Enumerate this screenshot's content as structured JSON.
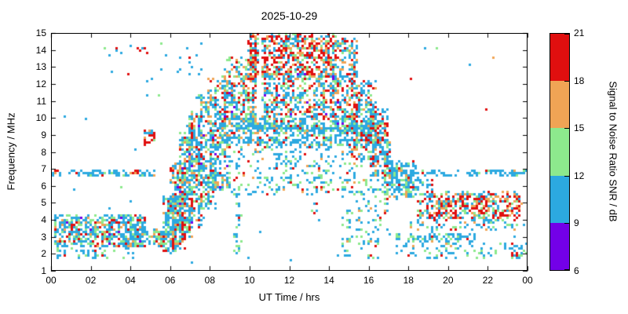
{
  "chart_data": {
    "type": "scatter",
    "title": "2025-10-29",
    "xlabel": "UT Time / hrs",
    "ylabel": "Frequency / MHz",
    "xlim": [
      0,
      24
    ],
    "ylim": [
      1,
      15
    ],
    "grid": false,
    "x_ticks": {
      "values": [
        0,
        2,
        4,
        6,
        8,
        10,
        12,
        14,
        16,
        18,
        20,
        22,
        24
      ],
      "labels": [
        "00",
        "02",
        "04",
        "06",
        "08",
        "10",
        "12",
        "14",
        "16",
        "18",
        "20",
        "22",
        "00"
      ]
    },
    "y_ticks": {
      "values": [
        1,
        2,
        3,
        4,
        5,
        6,
        7,
        8,
        9,
        10,
        11,
        12,
        13,
        14,
        15
      ],
      "labels": [
        "1",
        "2",
        "3",
        "4",
        "5",
        "6",
        "7",
        "8",
        "9",
        "10",
        "11",
        "12",
        "13",
        "14",
        "15"
      ]
    },
    "colorbar": {
      "label": "Signal to Noise Ratio SNR / dB",
      "range": [
        6,
        21
      ],
      "ticks": [
        6,
        9,
        12,
        15,
        18,
        21
      ],
      "colors": [
        "#7300E8",
        "#2CA9E0",
        "#8DE98D",
        "#F0A455",
        "#E00F0F"
      ]
    },
    "point_colors": {
      "purple": "#7300E8",
      "blue": "#2CA9E0",
      "green": "#8DE98D",
      "orange": "#F0A455",
      "red": "#E00F0F"
    },
    "clusters": [
      {
        "t": [
          0.1,
          4.7
        ],
        "f": [
          2.45,
          4.35
        ],
        "n": 520,
        "colors": {
          "blue": 52,
          "green": 26,
          "orange": 10,
          "red": 9,
          "purple": 3
        }
      },
      {
        "t": [
          0.1,
          4.2
        ],
        "f": [
          1.75,
          2.35
        ],
        "n": 45,
        "colors": {
          "blue": 70,
          "green": 20,
          "orange": 5,
          "red": 5
        }
      },
      {
        "t": [
          3.4,
          5.9
        ],
        "f": [
          2.55,
          3.45
        ],
        "n": 150,
        "colors": {
          "blue": 60,
          "green": 28,
          "orange": 6,
          "red": 6
        }
      },
      {
        "t": [
          0.0,
          5.2
        ],
        "f": [
          6.7,
          6.95
        ],
        "n": 80,
        "colors": {
          "blue": 88,
          "green": 6,
          "orange": 3,
          "red": 3
        }
      },
      {
        "t": [
          0.05,
          0.35
        ],
        "f": [
          6.8,
          7.0
        ],
        "n": 4,
        "colors": {
          "red": 60,
          "orange": 40
        }
      },
      {
        "t": [
          4.0,
          4.35
        ],
        "f": [
          6.75,
          7.0
        ],
        "n": 8,
        "colors": {
          "red": 70,
          "orange": 30
        }
      },
      {
        "t": [
          4.65,
          5.15
        ],
        "f": [
          8.5,
          9.35
        ],
        "n": 30,
        "colors": {
          "red": 55,
          "orange": 20,
          "blue": 15,
          "green": 10
        }
      },
      {
        "t": [
          4.3,
          4.75
        ],
        "f": [
          13.8,
          14.35
        ],
        "n": 6,
        "colors": {
          "red": 60,
          "blue": 40
        }
      },
      {
        "t": [
          5.2,
          7.7
        ],
        "f": [
          11.9,
          14.6
        ],
        "n": 14,
        "colors": {
          "blue": 75,
          "green": 15,
          "red": 10
        }
      },
      {
        "t": [
          2.5,
          4.2
        ],
        "f": [
          12.1,
          14.4
        ],
        "n": 7,
        "colors": {
          "blue": 70,
          "red": 30
        }
      },
      {
        "t": [
          5.6,
          6.3
        ],
        "f": [
          2.2,
          5.4
        ],
        "n": 170,
        "colors": {
          "blue": 45,
          "green": 20,
          "orange": 13,
          "red": 20,
          "purple": 2
        }
      },
      {
        "t": [
          6.0,
          6.65
        ],
        "f": [
          2.4,
          7.4
        ],
        "n": 230,
        "colors": {
          "blue": 45,
          "green": 20,
          "orange": 13,
          "red": 20,
          "purple": 2
        }
      },
      {
        "t": [
          6.4,
          7.1
        ],
        "f": [
          2.8,
          9.2
        ],
        "n": 260,
        "colors": {
          "blue": 46,
          "green": 20,
          "orange": 14,
          "red": 18,
          "purple": 2
        }
      },
      {
        "t": [
          6.85,
          7.6
        ],
        "f": [
          3.6,
          10.4
        ],
        "n": 240,
        "colors": {
          "blue": 48,
          "green": 22,
          "orange": 12,
          "red": 16,
          "purple": 2
        }
      },
      {
        "t": [
          7.3,
          8.25
        ],
        "f": [
          4.6,
          11.4
        ],
        "n": 230,
        "colors": {
          "blue": 50,
          "green": 22,
          "orange": 12,
          "red": 14,
          "purple": 2
        }
      },
      {
        "t": [
          7.9,
          8.9
        ],
        "f": [
          5.8,
          12.4
        ],
        "n": 210,
        "colors": {
          "blue": 50,
          "green": 22,
          "orange": 12,
          "red": 14,
          "purple": 2
        }
      },
      {
        "t": [
          8.6,
          10.3
        ],
        "f": [
          9.6,
          13.6
        ],
        "n": 330,
        "colors": {
          "blue": 42,
          "green": 20,
          "orange": 14,
          "red": 22,
          "purple": 2
        }
      },
      {
        "t": [
          9.9,
          10.33
        ],
        "f": [
          12.3,
          15.0
        ],
        "n": 120,
        "colors": {
          "red": 45,
          "orange": 18,
          "blue": 22,
          "green": 15
        }
      },
      {
        "t": [
          10.55,
          14.3
        ],
        "f": [
          12.4,
          15.0
        ],
        "n": 560,
        "colors": {
          "red": 46,
          "orange": 17,
          "blue": 21,
          "green": 16
        }
      },
      {
        "t": [
          10.55,
          14.4
        ],
        "f": [
          10.0,
          12.7
        ],
        "n": 420,
        "colors": {
          "blue": 44,
          "green": 20,
          "orange": 14,
          "red": 20,
          "purple": 2
        }
      },
      {
        "t": [
          8.3,
          16.4
        ],
        "f": [
          8.35,
          10.15
        ],
        "n": 620,
        "colors": {
          "blue": 62,
          "green": 20,
          "orange": 9,
          "red": 9
        }
      },
      {
        "t": [
          9.0,
          16.2
        ],
        "f": [
          9.35,
          9.6
        ],
        "n": 120,
        "colors": {
          "blue": 85,
          "green": 10,
          "orange": 3,
          "red": 2
        }
      },
      {
        "t": [
          8.0,
          15.6
        ],
        "f": [
          5.6,
          8.25
        ],
        "n": 260,
        "colors": {
          "blue": 58,
          "green": 24,
          "orange": 9,
          "red": 9
        }
      },
      {
        "t": [
          14.1,
          15.4
        ],
        "f": [
          9.2,
          14.7
        ],
        "n": 300,
        "colors": {
          "blue": 40,
          "green": 18,
          "orange": 16,
          "red": 24,
          "purple": 2
        }
      },
      {
        "t": [
          15.0,
          16.3
        ],
        "f": [
          7.6,
          12.2
        ],
        "n": 220,
        "colors": {
          "blue": 48,
          "green": 20,
          "orange": 13,
          "red": 19
        }
      },
      {
        "t": [
          16.0,
          17.0
        ],
        "f": [
          6.6,
          10.6
        ],
        "n": 170,
        "colors": {
          "blue": 55,
          "green": 18,
          "orange": 11,
          "red": 16
        }
      },
      {
        "t": [
          16.3,
          16.95
        ],
        "f": [
          8.5,
          9.8
        ],
        "n": 40,
        "colors": {
          "red": 55,
          "orange": 15,
          "blue": 20,
          "green": 10
        }
      },
      {
        "t": [
          16.7,
          18.3
        ],
        "f": [
          5.3,
          7.5
        ],
        "n": 190,
        "colors": {
          "blue": 60,
          "green": 20,
          "orange": 9,
          "red": 11
        }
      },
      {
        "t": [
          9.1,
          9.5
        ],
        "f": [
          2.0,
          6.0
        ],
        "n": 30,
        "colors": {
          "blue": 60,
          "green": 30,
          "red": 10
        }
      },
      {
        "t": [
          12.95,
          13.4
        ],
        "f": [
          4.0,
          6.6
        ],
        "n": 18,
        "colors": {
          "blue": 65,
          "green": 25,
          "red": 10
        }
      },
      {
        "t": [
          14.55,
          15.1
        ],
        "f": [
          1.9,
          5.0
        ],
        "n": 28,
        "colors": {
          "blue": 60,
          "green": 30,
          "orange": 10
        }
      },
      {
        "t": [
          15.3,
          16.9
        ],
        "f": [
          1.8,
          6.6
        ],
        "n": 90,
        "colors": {
          "blue": 55,
          "green": 28,
          "orange": 9,
          "red": 8
        }
      },
      {
        "t": [
          17.0,
          23.95
        ],
        "f": [
          6.68,
          7.0
        ],
        "n": 95,
        "colors": {
          "blue": 90,
          "green": 5,
          "orange": 3,
          "red": 2
        }
      },
      {
        "t": [
          17.0,
          19.2
        ],
        "f": [
          5.7,
          6.6
        ],
        "n": 55,
        "colors": {
          "blue": 70,
          "green": 20,
          "red": 10
        }
      },
      {
        "t": [
          18.4,
          23.6
        ],
        "f": [
          4.1,
          5.7
        ],
        "n": 460,
        "colors": {
          "red": 42,
          "orange": 16,
          "blue": 26,
          "green": 16
        }
      },
      {
        "t": [
          18.0,
          23.8
        ],
        "f": [
          3.4,
          4.1
        ],
        "n": 70,
        "colors": {
          "blue": 55,
          "green": 25,
          "orange": 10,
          "red": 10
        }
      },
      {
        "t": [
          17.0,
          21.3
        ],
        "f": [
          2.8,
          3.25
        ],
        "n": 90,
        "colors": {
          "blue": 62,
          "green": 26,
          "orange": 6,
          "red": 6
        }
      },
      {
        "t": [
          17.2,
          23.9
        ],
        "f": [
          1.8,
          2.7
        ],
        "n": 90,
        "colors": {
          "blue": 60,
          "green": 28,
          "orange": 6,
          "red": 6
        }
      },
      {
        "t": [
          23.1,
          23.6
        ],
        "f": [
          1.95,
          2.2
        ],
        "n": 5,
        "colors": {
          "red": 80,
          "orange": 20
        }
      },
      {
        "t": [
          0.3,
          23.8
        ],
        "f": [
          1.6,
          14.6
        ],
        "n": 60,
        "colors": {
          "blue": 75,
          "green": 15,
          "orange": 5,
          "red": 5
        }
      }
    ]
  }
}
